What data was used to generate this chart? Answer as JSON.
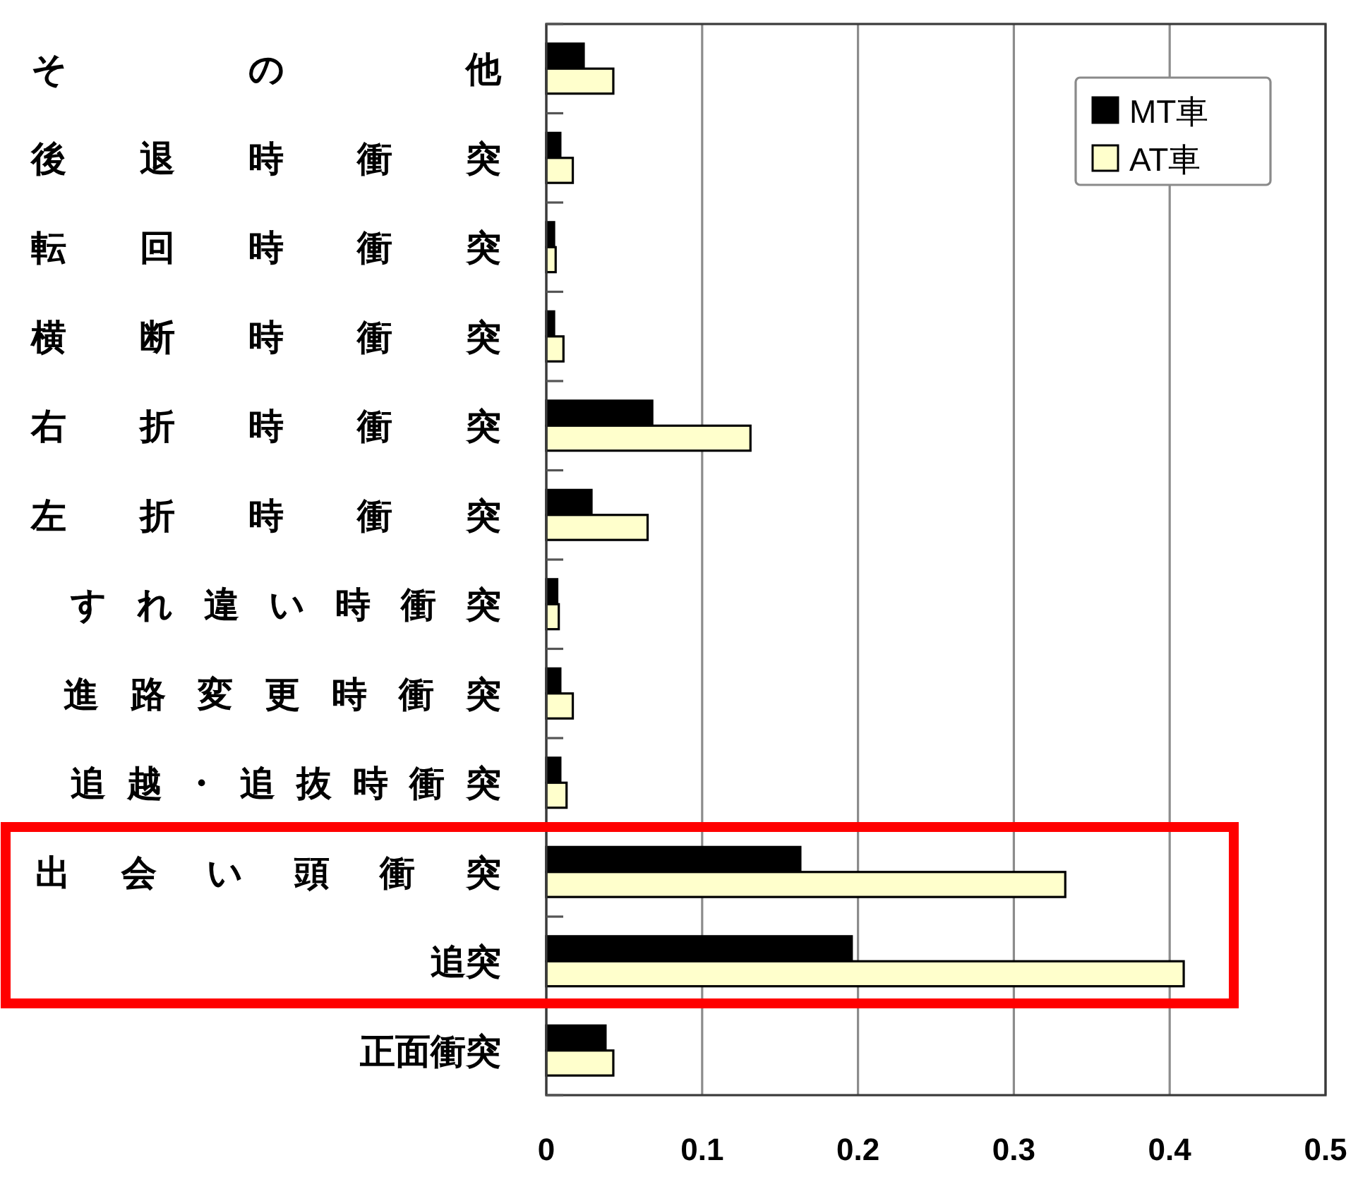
{
  "chart_data": {
    "type": "bar",
    "orientation": "horizontal",
    "categories": [
      "その他",
      "後退時衝突",
      "転回時衝突",
      "横断時衝突",
      "右折時衝突",
      "左折時衝突",
      "すれ違い時衝突",
      "進路変更時衝突",
      "追越・追抜時衝突",
      "出会い頭衝突",
      "追突",
      "正面衝突"
    ],
    "series": [
      {
        "name": "MT車",
        "color": "#000000",
        "values": [
          0.024,
          0.009,
          0.005,
          0.005,
          0.068,
          0.029,
          0.007,
          0.009,
          0.009,
          0.163,
          0.196,
          0.038
        ]
      },
      {
        "name": "AT車",
        "color": "#ffffcc",
        "values": [
          0.043,
          0.017,
          0.006,
          0.011,
          0.131,
          0.065,
          0.008,
          0.017,
          0.013,
          0.333,
          0.409,
          0.043
        ]
      }
    ],
    "xlim": [
      0,
      0.5
    ],
    "xticks": [
      0,
      0.1,
      0.2,
      0.3,
      0.4,
      0.5
    ],
    "grid": "x",
    "legend": "top right"
  }
}
